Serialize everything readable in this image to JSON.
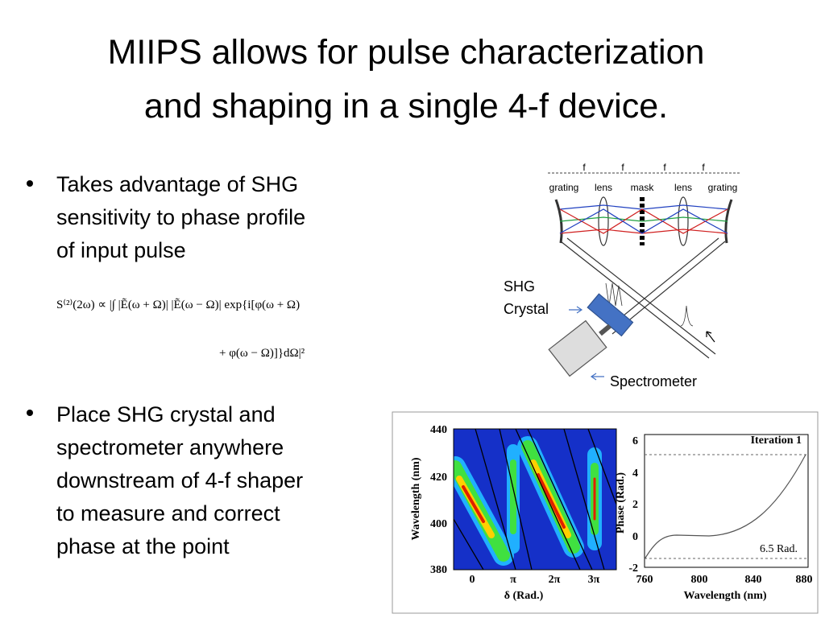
{
  "title": {
    "lines": [
      "MIIPS allows for pulse characterization",
      "and shaping in a single 4-f device."
    ]
  },
  "bullets": [
    {
      "lines": [
        "Takes advantage of SHG",
        "sensitivity to phase profile",
        "of input pulse"
      ]
    },
    {
      "lines": [
        "Place SHG crystal and",
        "spectrometer anywhere",
        "downstream of 4-f shaper",
        "to measure and correct",
        "phase at the point"
      ]
    }
  ],
  "equation": {
    "lines": [
      "S⁽²⁾(2ω) ∝ |∫ |Ẽ(ω + Ω)| |Ẽ(ω − Ω)| exp{i[φ(ω + Ω)",
      "+ φ(ω − Ω)]}dΩ|²"
    ]
  },
  "shaper": {
    "focal_labels": [
      "f",
      "f",
      "f",
      "f"
    ],
    "components": [
      "grating",
      "lens",
      "mask",
      "lens",
      "grating"
    ],
    "crystal_label": [
      "SHG",
      "Crystal"
    ],
    "spectrometer_label": "Spectrometer"
  },
  "figure": {
    "left_plot": {
      "ylabel": "Wavelength (nm)",
      "xlabel": "δ (Rad.)",
      "yticks": [
        "440",
        "420",
        "400",
        "380"
      ],
      "xticks": [
        "0",
        "π",
        "2π",
        "3π"
      ]
    },
    "right_plot": {
      "ylabel": "Phase (Rad.)",
      "xlabel": "Wavelength (nm)",
      "yticks": [
        "6",
        "4",
        "2",
        "0",
        "-2"
      ],
      "xticks": [
        "760",
        "800",
        "840",
        "880"
      ],
      "legend": "Iteration 1",
      "annotation": "6.5 Rad."
    }
  }
}
